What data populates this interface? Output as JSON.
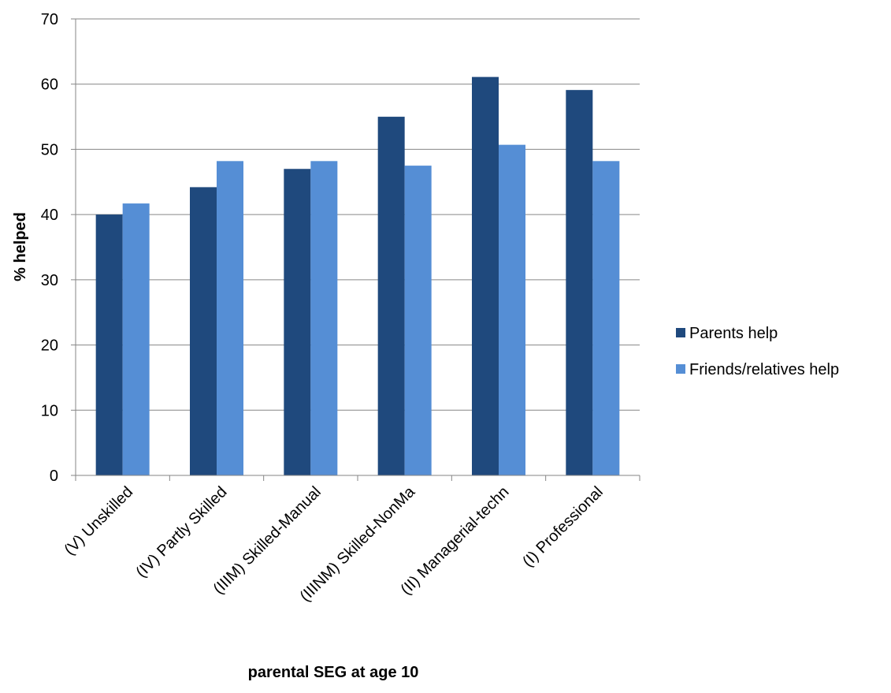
{
  "chart_data": {
    "type": "bar",
    "title": "",
    "xlabel": "parental SEG at age 10",
    "ylabel": "% helped",
    "ylim": [
      0,
      70
    ],
    "y_ticks": [
      0,
      10,
      20,
      30,
      40,
      50,
      60,
      70
    ],
    "grid": true,
    "legend_position": "right",
    "categories": [
      "(V) Unskilled",
      "(IV) Partly Skilled",
      "(IIIM) Skilled-Manual",
      "(IIINM) Skilled-NonMa",
      "(II) Managerial-techn",
      "(I) Professional"
    ],
    "series": [
      {
        "name": "Parents help",
        "color": "#1f497d",
        "values": [
          40,
          44.2,
          47,
          55,
          61.1,
          59.1
        ]
      },
      {
        "name": "Friends/relatives help",
        "color": "#558ed5",
        "values": [
          41.7,
          48.2,
          48.2,
          47.5,
          50.7,
          48.2
        ]
      }
    ]
  }
}
